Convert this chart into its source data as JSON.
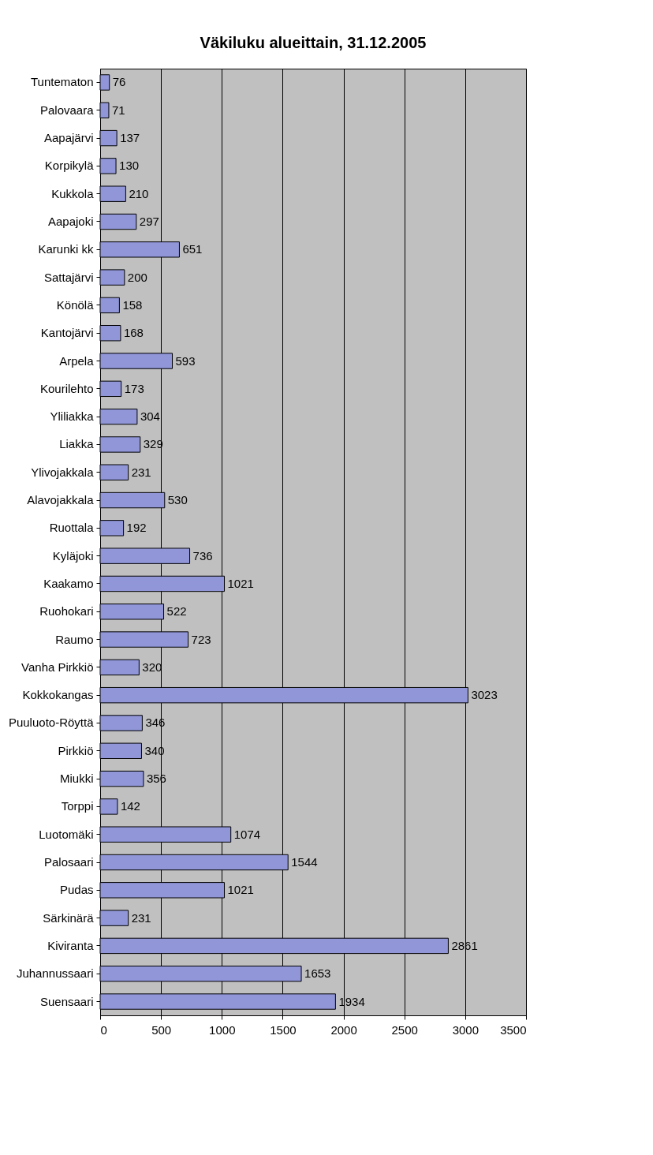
{
  "chart_data": {
    "type": "bar",
    "orientation": "horizontal",
    "title": "Väkiluku alueittain, 31.12.2005",
    "categories": [
      "Tuntematon",
      "Palovaara",
      "Aapajärvi",
      "Korpikylä",
      "Kukkola",
      "Aapajoki",
      "Karunki kk",
      "Sattajärvi",
      "Könölä",
      "Kantojärvi",
      "Arpela",
      "Kourilehto",
      "Yliliakka",
      "Liakka",
      "Ylivojakkala",
      "Alavojakkala",
      "Ruottala",
      "Kyläjoki",
      "Kaakamo",
      "Ruohokari",
      "Raumo",
      "Vanha Pirkkiö",
      "Kokkokangas",
      "Puuluoto-Röyttä",
      "Pirkkiö",
      "Miukki",
      "Torppi",
      "Luotomäki",
      "Palosaari",
      "Pudas",
      "Särkinärä",
      "Kiviranta",
      "Juhannussaari",
      "Suensaari"
    ],
    "values": [
      76,
      71,
      137,
      130,
      210,
      297,
      651,
      200,
      158,
      168,
      593,
      173,
      304,
      329,
      231,
      530,
      192,
      736,
      1021,
      522,
      723,
      320,
      3023,
      346,
      340,
      356,
      142,
      1074,
      1544,
      1021,
      231,
      2861,
      1653,
      1934
    ],
    "color": "#9096d8",
    "xlim": [
      0,
      3500
    ],
    "xticks": [
      0,
      500,
      1000,
      1500,
      2000,
      2500,
      3000,
      3500
    ],
    "grid": "x",
    "data_labels": true
  }
}
